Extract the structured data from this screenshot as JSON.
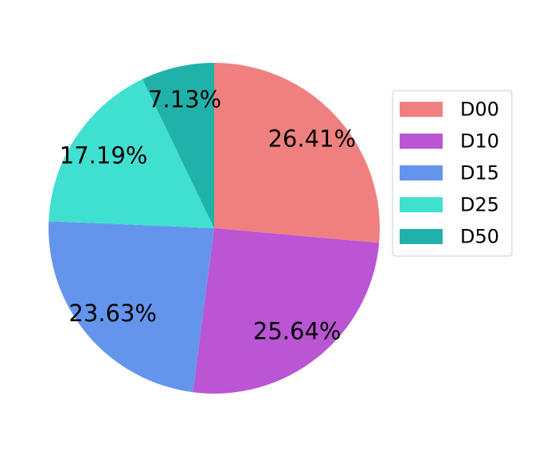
{
  "chart_data": {
    "type": "pie",
    "start_angle_deg": 90,
    "direction": "clockwise",
    "slices": [
      {
        "label": "D00",
        "value": 26.41,
        "display": "26.41%",
        "color": "#F08080"
      },
      {
        "label": "D10",
        "value": 25.64,
        "display": "25.64%",
        "color": "#BA55D3"
      },
      {
        "label": "D15",
        "value": 23.63,
        "display": "23.63%",
        "color": "#6495ED"
      },
      {
        "label": "D25",
        "value": 17.19,
        "display": "17.19%",
        "color": "#40E0D0"
      },
      {
        "label": "D50",
        "value": 7.13,
        "display": "7.13%",
        "color": "#20B2AA"
      }
    ],
    "legend": {
      "position": "right",
      "entries": [
        "D00",
        "D10",
        "D15",
        "D25",
        "D50"
      ]
    }
  }
}
